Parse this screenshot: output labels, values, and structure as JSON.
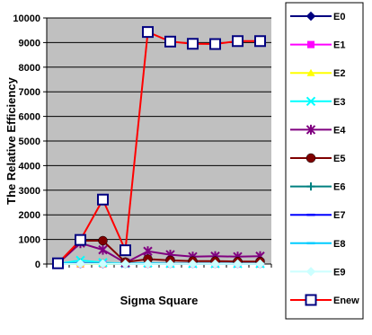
{
  "chart_data": {
    "type": "line",
    "title": "",
    "xlabel": "Sigma Square",
    "ylabel": "The Relative Efficiency",
    "ylim": [
      0,
      10000
    ],
    "yticks": [
      0,
      1000,
      2000,
      3000,
      4000,
      5000,
      6000,
      7000,
      8000,
      9000,
      10000
    ],
    "x": [
      1,
      2,
      3,
      4,
      5,
      6,
      7,
      8,
      9,
      10
    ],
    "grid": "horizontal",
    "plot_background": "#c0c0c0",
    "legend_position": "right",
    "series": [
      {
        "name": "E0",
        "color": "#000080",
        "marker": "diamond",
        "values": [
          1,
          1,
          1,
          1,
          1,
          1,
          1,
          1,
          1,
          1
        ]
      },
      {
        "name": "E1",
        "color": "#ff00ff",
        "marker": "square",
        "values": [
          1,
          1,
          1,
          1,
          1,
          1,
          1,
          1,
          1,
          1
        ]
      },
      {
        "name": "E2",
        "color": "#ffff00",
        "marker": "triangle",
        "values": [
          1,
          1,
          1,
          1,
          1,
          1,
          1,
          1,
          1,
          1
        ]
      },
      {
        "name": "E3",
        "color": "#00ffff",
        "marker": "x",
        "values": [
          10,
          150,
          60,
          20,
          40,
          20,
          15,
          15,
          15,
          15
        ]
      },
      {
        "name": "E4",
        "color": "#800080",
        "marker": "star",
        "values": [
          20,
          850,
          580,
          50,
          520,
          380,
          300,
          320,
          300,
          320
        ]
      },
      {
        "name": "E5",
        "color": "#800000",
        "marker": "circle",
        "values": [
          20,
          950,
          950,
          80,
          200,
          150,
          120,
          120,
          100,
          100
        ]
      },
      {
        "name": "E6",
        "color": "#008080",
        "marker": "plus",
        "values": [
          5,
          40,
          30,
          10,
          20,
          15,
          10,
          10,
          10,
          10
        ]
      },
      {
        "name": "E7",
        "color": "#0000ff",
        "marker": "dash",
        "values": [
          5,
          30,
          20,
          10,
          15,
          10,
          10,
          10,
          10,
          10
        ]
      },
      {
        "name": "E8",
        "color": "#00ccff",
        "marker": "dash",
        "values": [
          5,
          20,
          15,
          10,
          10,
          10,
          10,
          10,
          10,
          10
        ]
      },
      {
        "name": "E9",
        "color": "#ccffff",
        "marker": "diamond",
        "values": [
          2,
          10,
          10,
          5,
          5,
          5,
          5,
          5,
          5,
          5
        ]
      },
      {
        "name": "Enew",
        "color": "#ff0000",
        "marker": "open-square",
        "marker_color": "#000080",
        "values": [
          30,
          980,
          2620,
          560,
          9430,
          9040,
          8950,
          8940,
          9060,
          9060
        ]
      }
    ]
  }
}
